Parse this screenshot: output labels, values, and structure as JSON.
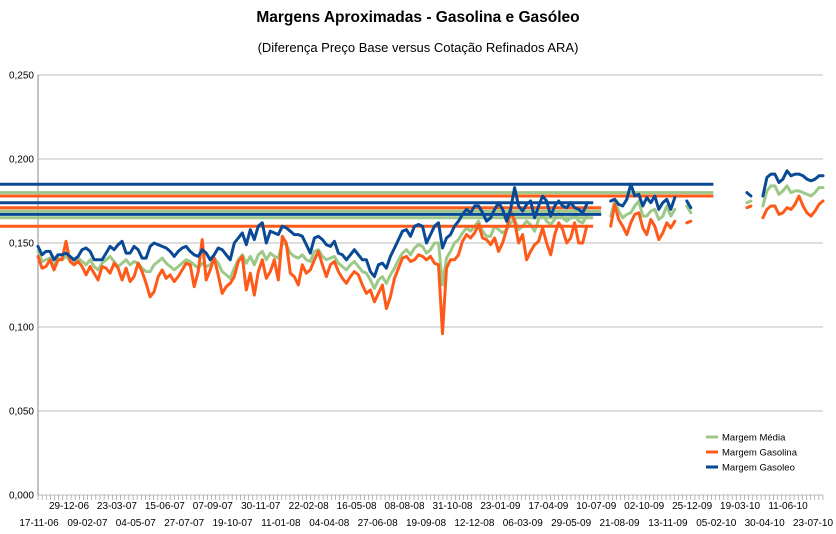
{
  "chart_data": {
    "type": "line",
    "title": "Margens Aproximadas - Gasolina e Gasóleo",
    "subtitle": "(Diferença Preço Base versus Cotação Refinados ARA)",
    "ylim": [
      0,
      0.25
    ],
    "yticks": [
      "0,000",
      "0,050",
      "0,100",
      "0,150",
      "0,200",
      "0,250"
    ],
    "ytick_values": [
      0,
      0.05,
      0.1,
      0.15,
      0.2,
      0.25
    ],
    "grid": "horizontal",
    "legend_position": "bottom-right",
    "colors": {
      "media": "#9dc888",
      "gasolina": "#ff5a1a",
      "gasoleo": "#0a4a94",
      "grid": "#bdbdbd"
    },
    "x_labels_top": [
      "29-12-06",
      "23-03-07",
      "15-06-07",
      "07-09-07",
      "30-11-07",
      "22-02-08",
      "16-05-08",
      "08-08-08",
      "31-10-08",
      "23-01-09",
      "17-04-09",
      "10-07-09",
      "02-10-09",
      "25-12-09",
      "19-03-10",
      "11-06-10"
    ],
    "x_labels_bottom": [
      "17-11-06",
      "09-02-07",
      "04-05-07",
      "27-07-07",
      "19-10-07",
      "11-01-08",
      "04-04-08",
      "27-06-08",
      "19-09-08",
      "12-12-08",
      "06-03-09",
      "29-05-09",
      "21-08-09",
      "13-11-09",
      "05-02-10",
      "30-04-10",
      "23-07-10"
    ],
    "series": [
      {
        "name": "Margem Média",
        "key": "media",
        "values": [
          0.145,
          0.139,
          0.14,
          0.141,
          0.136,
          0.141,
          0.14,
          0.142,
          0.14,
          0.138,
          0.141,
          0.139,
          0.137,
          0.14,
          0.136,
          0.134,
          0.138,
          0.14,
          0.142,
          0.139,
          0.136,
          0.138,
          0.14,
          0.137,
          0.139,
          0.138,
          0.135,
          0.133,
          0.133,
          0.137,
          0.139,
          0.141,
          0.138,
          0.136,
          0.134,
          0.136,
          0.138,
          0.14,
          0.139,
          0.137,
          0.135,
          0.138,
          0.136,
          0.137,
          0.141,
          0.138,
          0.133,
          0.131,
          0.129,
          0.135,
          0.14,
          0.143,
          0.138,
          0.142,
          0.137,
          0.143,
          0.145,
          0.14,
          0.144,
          0.142,
          0.141,
          0.15,
          0.149,
          0.144,
          0.142,
          0.141,
          0.143,
          0.14,
          0.139,
          0.145,
          0.146,
          0.142,
          0.14,
          0.141,
          0.142,
          0.138,
          0.136,
          0.134,
          0.137,
          0.139,
          0.136,
          0.133,
          0.132,
          0.128,
          0.123,
          0.128,
          0.13,
          0.126,
          0.131,
          0.135,
          0.14,
          0.144,
          0.146,
          0.143,
          0.147,
          0.149,
          0.148,
          0.144,
          0.146,
          0.15,
          0.15,
          0.125,
          0.141,
          0.145,
          0.15,
          0.152,
          0.156,
          0.159,
          0.157,
          0.16,
          0.163,
          0.157,
          0.154,
          0.154,
          0.16,
          0.158,
          0.156,
          0.158,
          0.162,
          0.164,
          0.158,
          0.16,
          0.163,
          0.161,
          0.157,
          0.164,
          0.167,
          0.163,
          0.161,
          0.164,
          0.168,
          0.165,
          0.163,
          0.165,
          0.167,
          0.163,
          0.162,
          0.166,
          null,
          0.165,
          null,
          0.169,
          null,
          0.166,
          0.175,
          0.169,
          0.165,
          0.167,
          0.168,
          0.172,
          0.175,
          0.166,
          0.166,
          0.169,
          0.17,
          0.164,
          0.166,
          0.172,
          0.166,
          0.17,
          null,
          null,
          0.172,
          0.168,
          null,
          null,
          null,
          null,
          null,
          0.18,
          null,
          null,
          null,
          null,
          null,
          null,
          null,
          0.174,
          0.175,
          null,
          null,
          0.172,
          0.181,
          0.184,
          0.184,
          0.179,
          0.181,
          0.184,
          0.18,
          0.181,
          0.181,
          0.18,
          0.179,
          0.178,
          0.18,
          0.183,
          0.183
        ]
      },
      {
        "name": "Margem Gasolina",
        "key": "gasolina",
        "values": [
          0.142,
          0.135,
          0.136,
          0.14,
          0.134,
          0.14,
          0.14,
          0.151,
          0.139,
          0.137,
          0.139,
          0.136,
          0.131,
          0.136,
          0.132,
          0.128,
          0.136,
          0.135,
          0.132,
          0.138,
          0.135,
          0.128,
          0.135,
          0.127,
          0.13,
          0.138,
          0.133,
          0.126,
          0.118,
          0.121,
          0.13,
          0.134,
          0.129,
          0.131,
          0.127,
          0.13,
          0.134,
          0.138,
          0.137,
          0.124,
          0.133,
          0.152,
          0.128,
          0.134,
          0.141,
          0.131,
          0.12,
          0.124,
          0.126,
          0.13,
          0.139,
          0.142,
          0.122,
          0.132,
          0.119,
          0.133,
          0.14,
          0.129,
          0.133,
          0.14,
          0.128,
          0.154,
          0.15,
          0.132,
          0.13,
          0.125,
          0.137,
          0.132,
          0.134,
          0.14,
          0.145,
          0.137,
          0.13,
          0.137,
          0.139,
          0.133,
          0.129,
          0.126,
          0.13,
          0.133,
          0.131,
          0.125,
          0.12,
          0.122,
          0.115,
          0.12,
          0.125,
          0.111,
          0.118,
          0.129,
          0.135,
          0.141,
          0.142,
          0.139,
          0.14,
          0.143,
          0.142,
          0.14,
          0.142,
          0.138,
          0.137,
          0.096,
          0.135,
          0.14,
          0.14,
          0.143,
          0.151,
          0.155,
          0.153,
          0.156,
          0.161,
          0.153,
          0.152,
          0.149,
          0.153,
          0.145,
          0.15,
          0.158,
          0.169,
          0.163,
          0.15,
          0.155,
          0.14,
          0.145,
          0.149,
          0.151,
          0.159,
          0.15,
          0.143,
          0.155,
          0.162,
          0.158,
          0.15,
          0.153,
          0.162,
          0.15,
          0.15,
          0.16,
          null,
          0.16,
          null,
          0.171,
          null,
          0.16,
          0.173,
          0.164,
          0.16,
          0.155,
          0.162,
          0.167,
          0.168,
          0.159,
          0.155,
          0.164,
          0.16,
          0.152,
          0.156,
          0.162,
          0.159,
          0.163,
          null,
          null,
          0.162,
          0.163,
          null,
          null,
          null,
          null,
          null,
          0.178,
          null,
          null,
          null,
          null,
          null,
          null,
          null,
          0.171,
          0.172,
          null,
          null,
          0.165,
          0.17,
          0.172,
          0.172,
          0.167,
          0.168,
          0.171,
          0.17,
          0.173,
          0.178,
          0.172,
          0.168,
          0.166,
          0.169,
          0.173,
          0.175
        ]
      },
      {
        "name": "Margem Gasoleo",
        "key": "gasoleo",
        "values": [
          0.148,
          0.143,
          0.145,
          0.145,
          0.14,
          0.143,
          0.143,
          0.144,
          0.142,
          0.14,
          0.142,
          0.146,
          0.147,
          0.145,
          0.14,
          0.14,
          0.14,
          0.144,
          0.148,
          0.146,
          0.149,
          0.151,
          0.144,
          0.144,
          0.148,
          0.146,
          0.141,
          0.141,
          0.148,
          0.15,
          0.149,
          0.148,
          0.147,
          0.145,
          0.142,
          0.145,
          0.147,
          0.148,
          0.145,
          0.143,
          0.142,
          0.146,
          0.144,
          0.14,
          0.143,
          0.147,
          0.146,
          0.143,
          0.14,
          0.15,
          0.153,
          0.156,
          0.149,
          0.158,
          0.152,
          0.16,
          0.162,
          0.15,
          0.157,
          0.156,
          0.155,
          0.16,
          0.159,
          0.157,
          0.155,
          0.155,
          0.154,
          0.149,
          0.144,
          0.153,
          0.154,
          0.152,
          0.149,
          0.148,
          0.151,
          0.144,
          0.143,
          0.14,
          0.143,
          0.146,
          0.143,
          0.14,
          0.14,
          0.133,
          0.13,
          0.137,
          0.138,
          0.135,
          0.142,
          0.147,
          0.152,
          0.157,
          0.158,
          0.154,
          0.16,
          0.161,
          0.16,
          0.15,
          0.155,
          0.16,
          0.162,
          0.147,
          0.153,
          0.155,
          0.16,
          0.163,
          0.167,
          0.17,
          0.168,
          0.172,
          0.172,
          0.168,
          0.163,
          0.165,
          0.17,
          0.174,
          0.17,
          0.163,
          0.17,
          0.183,
          0.172,
          0.169,
          0.173,
          0.175,
          0.165,
          0.172,
          0.178,
          0.175,
          0.166,
          0.172,
          0.175,
          0.172,
          0.171,
          0.174,
          0.171,
          0.17,
          0.168,
          0.173,
          null,
          0.174,
          null,
          0.167,
          null,
          0.175,
          0.176,
          0.173,
          0.172,
          0.176,
          0.185,
          0.178,
          0.179,
          0.172,
          0.177,
          0.174,
          0.178,
          0.17,
          0.174,
          0.176,
          0.17,
          0.177,
          null,
          null,
          0.175,
          0.171,
          null,
          null,
          null,
          null,
          null,
          0.185,
          null,
          null,
          null,
          null,
          null,
          null,
          null,
          0.18,
          0.178,
          null,
          null,
          0.178,
          0.189,
          0.191,
          0.191,
          0.186,
          0.188,
          0.193,
          0.19,
          0.191,
          0.191,
          0.19,
          0.188,
          0.187,
          0.188,
          0.19,
          0.19
        ]
      }
    ]
  }
}
